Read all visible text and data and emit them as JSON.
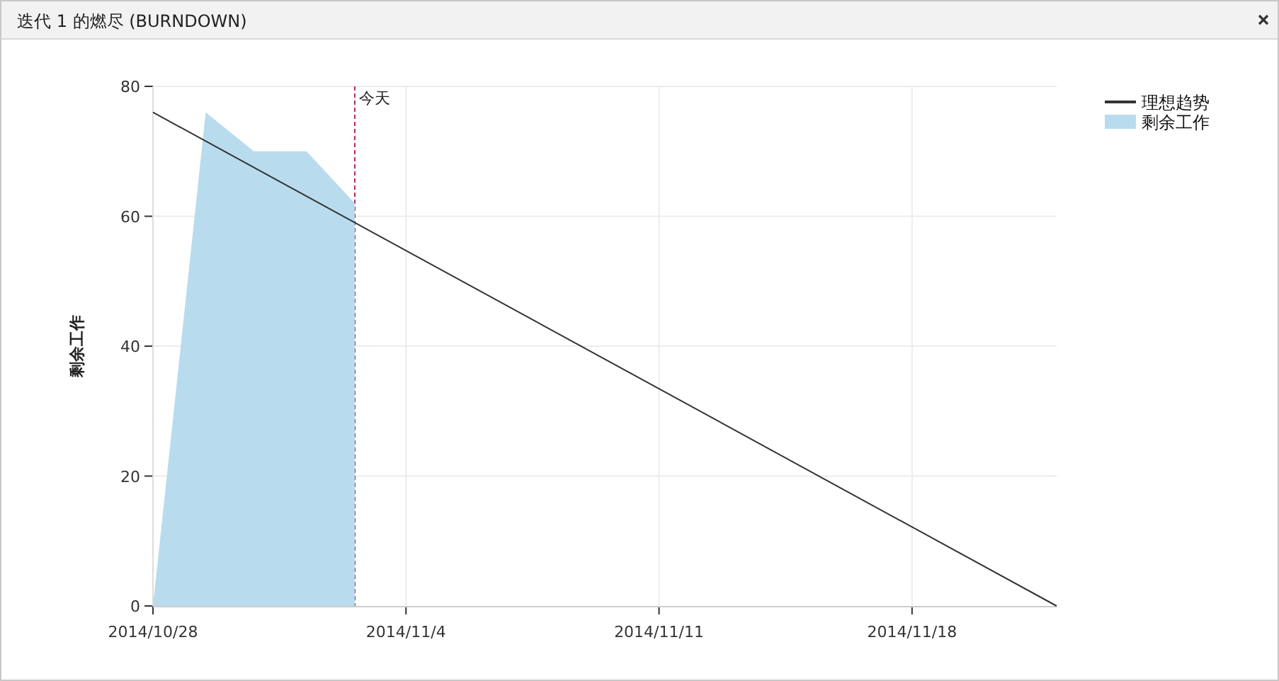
{
  "chart_data": {
    "type": "area",
    "title": "迭代 1 的燃尽 (BURNDOWN)",
    "ylabel": "剩余工作",
    "xlim": [
      "2014-10-28",
      "2014-11-22"
    ],
    "xticks": [
      {
        "value": "2014-10-28",
        "label": "2014/10/28"
      },
      {
        "value": "2014-11-04",
        "label": "2014/11/4"
      },
      {
        "value": "2014-11-11",
        "label": "2014/11/11"
      },
      {
        "value": "2014-11-18",
        "label": "2014/11/18"
      }
    ],
    "ylim": [
      0,
      80
    ],
    "yticks": [
      0,
      20,
      40,
      60,
      80
    ],
    "series": [
      {
        "name": "理想趋势",
        "type": "line",
        "color": "#333333",
        "x": [
          "2014-10-28",
          "2014-11-22"
        ],
        "values": [
          76,
          0
        ]
      },
      {
        "name": "剩余工作",
        "type": "area",
        "color": "#b8dcee",
        "x": [
          "2014-10-28",
          "2014-10-29T11:00",
          "2014-10-30T19:00",
          "2014-11-01T06:00",
          "2014-11-02T14:00"
        ],
        "values": [
          0,
          76,
          70,
          70,
          62
        ]
      }
    ],
    "ref_lines": [
      {
        "axis": "x",
        "value": "2014-11-02T14:00",
        "label": "今天",
        "color": "#b03050",
        "line_style": "dashed"
      }
    ],
    "grid": true,
    "legend": "top right"
  }
}
